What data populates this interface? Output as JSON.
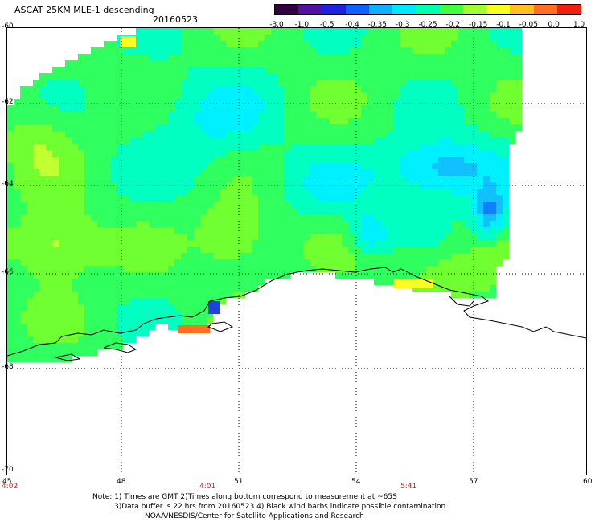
{
  "header": {
    "title": "ASCAT 25KM MLE-1 descending",
    "date": "20160523"
  },
  "colorbar": {
    "tick_labels": [
      "-3.0",
      "-1.0",
      "-0.5",
      "-0.4",
      "-0.35",
      "-0.3",
      "-0.25",
      "-0.2",
      "-0.15",
      "-0.1",
      "-0.05",
      "0.0",
      "1.0"
    ],
    "colors": [
      "#300040",
      "#5010a0",
      "#2020e0",
      "#1060ff",
      "#10b0ff",
      "#00e8ff",
      "#00ffb0",
      "#40ff40",
      "#a0ff30",
      "#f8ff20",
      "#ffc020",
      "#ff7020",
      "#f02010"
    ]
  },
  "map": {
    "lat_labels": [
      "-60",
      "-62",
      "-64",
      "-66",
      "-68",
      "-70"
    ],
    "lon_labels": [
      "45",
      "48",
      "51",
      "54",
      "57",
      "60"
    ],
    "pass_times": [
      "4:02",
      "4:01",
      "5:41"
    ],
    "time_color": "#e02010",
    "land_color": "#ffffff",
    "coastline_color": "#000000"
  },
  "notes": {
    "line1": "Note: 1) Times are GMT 2)Times along bottom correspond to measurement at ~65S",
    "line2": "3)Data buffer is 22 hrs from 20160523 4) Black wind barbs indicate possible contamination",
    "line3": "NOAA/NESDIS/Center for Satellite Applications and Research"
  }
}
